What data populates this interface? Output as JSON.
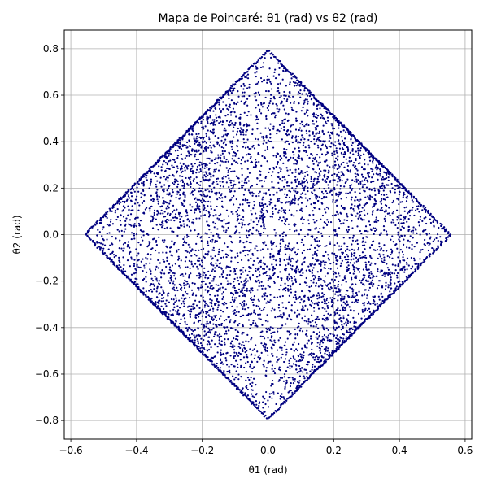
{
  "chart_data": {
    "type": "scatter",
    "title": "Mapa de Poincaré: θ1 (rad) vs θ2 (rad)",
    "xlabel": "θ1 (rad)",
    "ylabel": "θ2 (rad)",
    "xlim": [
      -0.62,
      0.62
    ],
    "ylim": [
      -0.88,
      0.88
    ],
    "xticks": [
      -0.6,
      -0.4,
      -0.2,
      0.0,
      0.2,
      0.4,
      0.6
    ],
    "xtick_labels": [
      "−0.6",
      "−0.4",
      "−0.2",
      "0.0",
      "0.2",
      "0.4",
      "0.6"
    ],
    "yticks": [
      -0.8,
      -0.6,
      -0.4,
      -0.2,
      0.0,
      0.2,
      0.4,
      0.6,
      0.8
    ],
    "ytick_labels": [
      "−0.8",
      "−0.6",
      "−0.4",
      "−0.2",
      "0.0",
      "0.2",
      "0.4",
      "0.6",
      "0.8"
    ],
    "grid": true,
    "marker_color": "#000080",
    "series": [
      {
        "region": {
          "shape": "diamond",
          "x_extent": [
            -0.56,
            0.56
          ],
          "y_extent": [
            -0.8,
            0.8
          ],
          "left_vertex": [
            -0.56,
            0.0
          ],
          "right_vertex": [
            0.56,
            0.0
          ],
          "top_vertex": [
            0.0,
            0.8
          ],
          "bottom_vertex": [
            0.0,
            -0.8
          ]
        }
      }
    ]
  }
}
